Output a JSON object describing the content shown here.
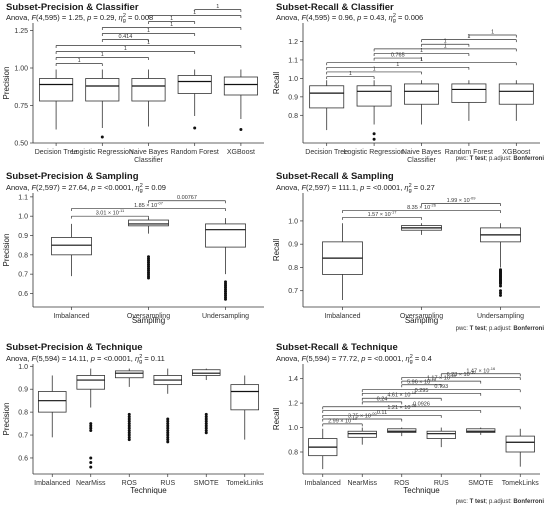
{
  "chart_data": [
    {
      "type": "box",
      "title": "Subset-Precision & Classifier",
      "stat": "Anova, F(4,595) = 1.25, p = 0.29, η²g = 0.008",
      "stat_parts": [
        "Anova, ",
        "F",
        "(4,595) = 1.25, ",
        "p",
        " = 0.29, ",
        "η",
        "g",
        "2",
        " = 0.008"
      ],
      "ylabel": "Precision",
      "xlabel": "",
      "ylim": [
        0.5,
        1.3
      ],
      "yticks": [
        0.5,
        0.75,
        1.0,
        1.25
      ],
      "ytick_labels": [
        "0.50",
        "0.75",
        "1.00",
        "1.25"
      ],
      "categories": [
        "Decision Tree",
        "Logistic Regression",
        "Naive Bayes Classifier",
        "Random Forest",
        "XGBoost"
      ],
      "category_lines": [
        [
          "Decision Tree"
        ],
        [
          "Logistic Regression"
        ],
        [
          "Naive Bayes",
          "Classifier"
        ],
        [
          "Random Forest"
        ],
        [
          "XGBoost"
        ]
      ],
      "boxes": [
        {
          "q1": 0.78,
          "median": 0.89,
          "q3": 0.93,
          "whisker_low": 0.59,
          "whisker_high": 0.99,
          "outliers": []
        },
        {
          "q1": 0.78,
          "median": 0.88,
          "q3": 0.93,
          "whisker_low": 0.6,
          "whisker_high": 0.99,
          "outliers": [
            0.54
          ]
        },
        {
          "q1": 0.78,
          "median": 0.88,
          "q3": 0.93,
          "whisker_low": 0.61,
          "whisker_high": 0.99,
          "outliers": []
        },
        {
          "q1": 0.83,
          "median": 0.91,
          "q3": 0.95,
          "whisker_low": 0.68,
          "whisker_high": 0.99,
          "outliers": [
            0.6
          ]
        },
        {
          "q1": 0.82,
          "median": 0.89,
          "q3": 0.94,
          "whisker_low": 0.66,
          "whisker_high": 0.99,
          "outliers": [
            0.59
          ]
        }
      ],
      "brackets": [
        {
          "from": 0,
          "to": 1,
          "y": 1.03,
          "label": "1"
        },
        {
          "from": 0,
          "to": 2,
          "y": 1.07,
          "label": "1"
        },
        {
          "from": 0,
          "to": 3,
          "y": 1.11,
          "label": "1"
        },
        {
          "from": 0,
          "to": 4,
          "y": 1.15,
          "label": "1"
        },
        {
          "from": 1,
          "to": 2,
          "y": 1.19,
          "label": "0.414"
        },
        {
          "from": 1,
          "to": 3,
          "y": 1.23,
          "label": "1"
        },
        {
          "from": 1,
          "to": 4,
          "y": 1.27,
          "label": "1"
        },
        {
          "from": 2,
          "to": 3,
          "y": 1.31,
          "label": "1"
        },
        {
          "from": 2,
          "to": 4,
          "y": 1.35,
          "label": "1"
        },
        {
          "from": 3,
          "to": 4,
          "y": 1.39,
          "label": "1"
        }
      ],
      "grid": false,
      "footer_parts": []
    },
    {
      "type": "box",
      "title": "Subset-Recall & Classifier",
      "stat": "Anova, F(4,595) = 0.96, p = 0.43, η²g = 0.006",
      "stat_parts": [
        "Anova, ",
        "F",
        "(4,595) = 0.96, ",
        "p",
        " = 0.43, ",
        "η",
        "g",
        "2",
        " = 0.006"
      ],
      "ylabel": "Recall",
      "xlabel": "",
      "ylim": [
        0.65,
        1.3
      ],
      "yticks": [
        0.8,
        0.9,
        1.0,
        1.1,
        1.2
      ],
      "ytick_labels": [
        "0.8",
        "0.9",
        "1.0",
        "1.1",
        "1.2"
      ],
      "categories": [
        "Decision Tree",
        "Logistic Regression",
        "Naive Bayes Classifier",
        "Random Forest",
        "XGBoost"
      ],
      "category_lines": [
        [
          "Decision Tree"
        ],
        [
          "Logistic Regression"
        ],
        [
          "Naive Bayes",
          "Classifier"
        ],
        [
          "Random Forest"
        ],
        [
          "XGBoost"
        ]
      ],
      "boxes": [
        {
          "q1": 0.84,
          "median": 0.92,
          "q3": 0.96,
          "whisker_low": 0.72,
          "whisker_high": 0.99,
          "outliers": []
        },
        {
          "q1": 0.85,
          "median": 0.93,
          "q3": 0.96,
          "whisker_low": 0.75,
          "whisker_high": 0.99,
          "outliers": [
            0.7,
            0.67
          ]
        },
        {
          "q1": 0.86,
          "median": 0.93,
          "q3": 0.97,
          "whisker_low": 0.75,
          "whisker_high": 0.99,
          "outliers": []
        },
        {
          "q1": 0.87,
          "median": 0.94,
          "q3": 0.97,
          "whisker_low": 0.77,
          "whisker_high": 0.99,
          "outliers": []
        },
        {
          "q1": 0.86,
          "median": 0.93,
          "q3": 0.97,
          "whisker_low": 0.77,
          "whisker_high": 0.99,
          "outliers": []
        }
      ],
      "brackets": [
        {
          "from": 0,
          "to": 1,
          "y": 1.01,
          "label": "1"
        },
        {
          "from": 0,
          "to": 2,
          "y": 1.035,
          "label": "1"
        },
        {
          "from": 0,
          "to": 3,
          "y": 1.06,
          "label": "1"
        },
        {
          "from": 0,
          "to": 4,
          "y": 1.085,
          "label": "1"
        },
        {
          "from": 1,
          "to": 2,
          "y": 1.11,
          "label": "0.765"
        },
        {
          "from": 1,
          "to": 3,
          "y": 1.135,
          "label": "1"
        },
        {
          "from": 1,
          "to": 4,
          "y": 1.16,
          "label": "1"
        },
        {
          "from": 2,
          "to": 3,
          "y": 1.185,
          "label": "1"
        },
        {
          "from": 2,
          "to": 4,
          "y": 1.21,
          "label": "1"
        },
        {
          "from": 3,
          "to": 4,
          "y": 1.235,
          "label": "1"
        }
      ],
      "grid": false,
      "footer_parts": [
        {
          "t": "pwc: ",
          "b": false
        },
        {
          "t": "T test",
          "b": true
        },
        {
          "t": "; p.adjust: ",
          "b": false
        },
        {
          "t": "Bonferroni",
          "b": true
        }
      ]
    },
    {
      "type": "box",
      "title": "Subset-Precision & Sampling",
      "stat": "Anova, F(2,597) = 27.64, p = <0.0001, η²g = 0.09",
      "stat_parts": [
        "Anova, ",
        "F",
        "(2,597) = 27.64, ",
        "p",
        " = <0.0001, ",
        "η",
        "g",
        "2",
        " = 0.09"
      ],
      "ylabel": "Precision",
      "xlabel": "Sampling",
      "ylim": [
        0.53,
        1.12
      ],
      "yticks": [
        0.6,
        0.7,
        0.8,
        0.9,
        1.0,
        1.1
      ],
      "ytick_labels": [
        "0.6",
        "0.7",
        "0.8",
        "0.9",
        "1.0",
        "1.1"
      ],
      "categories": [
        "Imbalanced",
        "Oversampling",
        "Undersampling"
      ],
      "category_lines": [
        [
          "Imbalanced"
        ],
        [
          "Oversampling"
        ],
        [
          "Undersampling"
        ]
      ],
      "boxes": [
        {
          "q1": 0.8,
          "median": 0.85,
          "q3": 0.89,
          "whisker_low": 0.69,
          "whisker_high": 0.96,
          "outliers": []
        },
        {
          "q1": 0.95,
          "median": 0.96,
          "q3": 0.98,
          "whisker_low": 0.91,
          "whisker_high": 0.99,
          "outliers": [
            0.79,
            0.78,
            0.77,
            0.76,
            0.75,
            0.74,
            0.73,
            0.72,
            0.71,
            0.7,
            0.69,
            0.68
          ]
        },
        {
          "q1": 0.84,
          "median": 0.93,
          "q3": 0.96,
          "whisker_low": 0.7,
          "whisker_high": 0.99,
          "outliers": [
            0.66,
            0.65,
            0.64,
            0.63,
            0.62,
            0.61,
            0.6,
            0.59,
            0.58,
            0.57
          ]
        }
      ],
      "brackets": [
        {
          "from": 0,
          "to": 1,
          "y": 1.0,
          "label": "3.01 × 10⁻¹¹",
          "base": "3.01 × 10",
          "exp": "-11"
        },
        {
          "from": 0,
          "to": 2,
          "y": 1.04,
          "label": "1.85 × 10⁻⁰⁷",
          "base": "1.85 × 10",
          "exp": "-07"
        },
        {
          "from": 1,
          "to": 2,
          "y": 1.08,
          "label": "0.00767"
        }
      ],
      "grid": false,
      "footer_parts": []
    },
    {
      "type": "box",
      "title": "Subset-Recall & Sampling",
      "stat": "Anova, F(2,597) = 111.1, p = <0.0001, η²g = 0.27",
      "stat_parts": [
        "Anova, ",
        "F",
        "(2,597) = 111.1, ",
        "p",
        " = <0.0001, ",
        "η",
        "g",
        "2",
        " = 0.27"
      ],
      "ylabel": "Recall",
      "xlabel": "Sampling",
      "ylim": [
        0.63,
        1.12
      ],
      "yticks": [
        0.7,
        0.8,
        0.9,
        1.0
      ],
      "ytick_labels": [
        "0.7",
        "0.8",
        "0.9",
        "1.0"
      ],
      "categories": [
        "Imbalanced",
        "Oversampling",
        "Undersampling"
      ],
      "category_lines": [
        [
          "Imbalanced"
        ],
        [
          "Oversampling"
        ],
        [
          "Undersampling"
        ]
      ],
      "boxes": [
        {
          "q1": 0.77,
          "median": 0.84,
          "q3": 0.91,
          "whisker_low": 0.66,
          "whisker_high": 0.99,
          "outliers": []
        },
        {
          "q1": 0.96,
          "median": 0.97,
          "q3": 0.98,
          "whisker_low": 0.94,
          "whisker_high": 0.99,
          "outliers": []
        },
        {
          "q1": 0.91,
          "median": 0.94,
          "q3": 0.97,
          "whisker_low": 0.8,
          "whisker_high": 0.99,
          "outliers": [
            0.79,
            0.785,
            0.78,
            0.775,
            0.77,
            0.765,
            0.76,
            0.755,
            0.75,
            0.745,
            0.74,
            0.735,
            0.73,
            0.72,
            0.7,
            0.69,
            0.68
          ]
        }
      ],
      "brackets": [
        {
          "from": 0,
          "to": 1,
          "y": 1.015,
          "label": "1.57 × 10⁻¹⁷",
          "base": "1.57 × 10",
          "exp": "-17"
        },
        {
          "from": 0,
          "to": 2,
          "y": 1.045,
          "label": "8.35 × 10⁻²⁶",
          "base": "8.35 × 10",
          "exp": "-26"
        },
        {
          "from": 1,
          "to": 2,
          "y": 1.075,
          "label": "1.99 × 10⁻⁰⁹",
          "base": "1.99 × 10",
          "exp": "-09"
        }
      ],
      "grid": false,
      "footer_parts": [
        {
          "t": "pwc: ",
          "b": false
        },
        {
          "t": "T test",
          "b": true
        },
        {
          "t": "; p.adjust: ",
          "b": false
        },
        {
          "t": "Bonferroni",
          "b": true
        }
      ]
    },
    {
      "type": "box",
      "title": "Subset-Precision & Technique",
      "stat": "Anova, F(5,594) = 14.11, p = <0.0001, η²g = 0.11",
      "stat_parts": [
        "Anova, ",
        "F",
        "(5,594) = 14.11, ",
        "p",
        " = <0.0001, ",
        "η",
        "g",
        "2",
        " = 0.11"
      ],
      "ylabel": "Precision",
      "xlabel": "Technique",
      "ylim": [
        0.53,
        1.01
      ],
      "yticks": [
        0.6,
        0.7,
        0.8,
        0.9,
        1.0
      ],
      "ytick_labels": [
        "0.6",
        "0.7",
        "0.8",
        "0.9",
        "1.0"
      ],
      "categories": [
        "Imbalanced",
        "NearMiss",
        "ROS",
        "RUS",
        "SMOTE",
        "TomekLinks"
      ],
      "category_lines": [
        [
          "Imbalanced"
        ],
        [
          "NearMiss"
        ],
        [
          "ROS"
        ],
        [
          "RUS"
        ],
        [
          "SMOTE"
        ],
        [
          "TomekLinks"
        ]
      ],
      "boxes": [
        {
          "q1": 0.8,
          "median": 0.85,
          "q3": 0.89,
          "whisker_low": 0.69,
          "whisker_high": 0.96,
          "outliers": []
        },
        {
          "q1": 0.9,
          "median": 0.94,
          "q3": 0.96,
          "whisker_low": 0.82,
          "whisker_high": 0.99,
          "outliers": [
            0.75,
            0.74,
            0.73,
            0.72,
            0.6,
            0.58,
            0.56
          ]
        },
        {
          "q1": 0.95,
          "median": 0.97,
          "q3": 0.98,
          "whisker_low": 0.91,
          "whisker_high": 0.99,
          "outliers": [
            0.79,
            0.78,
            0.77,
            0.76,
            0.75,
            0.74,
            0.73,
            0.72,
            0.71,
            0.7,
            0.69,
            0.68
          ]
        },
        {
          "q1": 0.92,
          "median": 0.94,
          "q3": 0.96,
          "whisker_low": 0.88,
          "whisker_high": 0.99,
          "outliers": [
            0.77,
            0.76,
            0.75,
            0.74,
            0.73,
            0.72,
            0.71,
            0.7,
            0.69,
            0.68,
            0.67
          ]
        },
        {
          "q1": 0.96,
          "median": 0.97,
          "q3": 0.985,
          "whisker_low": 0.94,
          "whisker_high": 0.99,
          "outliers": [
            0.79,
            0.78,
            0.77,
            0.76,
            0.75,
            0.74,
            0.73,
            0.72,
            0.71
          ]
        },
        {
          "q1": 0.81,
          "median": 0.89,
          "q3": 0.92,
          "whisker_low": 0.68,
          "whisker_high": 0.96,
          "outliers": []
        }
      ],
      "brackets": [],
      "grid": false,
      "footer_parts": []
    },
    {
      "type": "box",
      "title": "Subset-Recall & Technique",
      "stat": "Anova, F(5,594) = 77.72, p = <0.0001, η²g = 0.4",
      "stat_parts": [
        "Anova, ",
        "F",
        "(5,594) = 77.72, ",
        "p",
        " = <0.0001, ",
        "η",
        "g",
        "2",
        " = 0.4"
      ],
      "ylabel": "Recall",
      "xlabel": "Technique",
      "ylim": [
        0.62,
        1.52
      ],
      "yticks": [
        0.8,
        1.0,
        1.2,
        1.4
      ],
      "ytick_labels": [
        "0.8",
        "1.0",
        "1.2",
        "1.4"
      ],
      "categories": [
        "Imbalanced",
        "NearMiss",
        "ROS",
        "RUS",
        "SMOTE",
        "TomekLinks"
      ],
      "category_lines": [
        [
          "Imbalanced"
        ],
        [
          "NearMiss"
        ],
        [
          "ROS"
        ],
        [
          "RUS"
        ],
        [
          "SMOTE"
        ],
        [
          "TomekLinks"
        ]
      ],
      "boxes": [
        {
          "q1": 0.77,
          "median": 0.84,
          "q3": 0.91,
          "whisker_low": 0.66,
          "whisker_high": 0.99,
          "outliers": []
        },
        {
          "q1": 0.92,
          "median": 0.95,
          "q3": 0.97,
          "whisker_low": 0.86,
          "whisker_high": 1.0,
          "outliers": []
        },
        {
          "q1": 0.96,
          "median": 0.97,
          "q3": 0.99,
          "whisker_low": 0.93,
          "whisker_high": 1.0,
          "outliers": []
        },
        {
          "q1": 0.91,
          "median": 0.95,
          "q3": 0.97,
          "whisker_low": 0.84,
          "whisker_high": 1.0,
          "outliers": []
        },
        {
          "q1": 0.96,
          "median": 0.97,
          "q3": 0.99,
          "whisker_low": 0.94,
          "whisker_high": 1.0,
          "outliers": []
        },
        {
          "q1": 0.8,
          "median": 0.88,
          "q3": 0.93,
          "whisker_low": 0.68,
          "whisker_high": 0.99,
          "outliers": []
        }
      ],
      "brackets": [
        {
          "from": 0,
          "to": 1,
          "y": 1.03,
          "label": "2.99 × 10⁻¹⁰",
          "base": "2.99 × 10",
          "exp": "-10"
        },
        {
          "from": 0,
          "to": 2,
          "y": 1.07,
          "label": "3.75 × 10⁻⁰⁰",
          "base": "3.75 × 10",
          "exp": "-00"
        },
        {
          "from": 0,
          "to": 3,
          "y": 1.1,
          "label": "0.11"
        },
        {
          "from": 0,
          "to": 4,
          "y": 1.14,
          "label": "1.21 × 10⁻⁰⁶",
          "base": "1.21 × 10",
          "exp": "-06"
        },
        {
          "from": 0,
          "to": 5,
          "y": 1.17,
          "label": "0.0926"
        },
        {
          "from": 1,
          "to": 2,
          "y": 1.21,
          "label": "0.24"
        },
        {
          "from": 1,
          "to": 3,
          "y": 1.24,
          "label": "4.61 × 10⁻¹⁸",
          "base": "4.61 × 10",
          "exp": "-18"
        },
        {
          "from": 1,
          "to": 4,
          "y": 1.28,
          "label": "0.295"
        },
        {
          "from": 1,
          "to": 5,
          "y": 1.31,
          "label": "0.793"
        },
        {
          "from": 2,
          "to": 3,
          "y": 1.35,
          "label": "5.96 × 10⁻¹⁸",
          "base": "5.96 × 10",
          "exp": "-18"
        },
        {
          "from": 2,
          "to": 4,
          "y": 1.38,
          "label": "1.17 × 10⁻¹⁸",
          "base": "1.17 × 10",
          "exp": "-18"
        },
        {
          "from": 2,
          "to": 5,
          "y": 1.41,
          "label": "6.23 × 10⁻¹⁰",
          "base": "6.23 × 10",
          "exp": "-10"
        },
        {
          "from": 3,
          "to": 5,
          "y": 1.44,
          "label": "1.47 × 10⁻¹⁶",
          "base": "1.47 × 10",
          "exp": "-16"
        }
      ],
      "grid": false,
      "footer_parts": [
        {
          "t": "pwc: ",
          "b": false
        },
        {
          "t": "T test",
          "b": true
        },
        {
          "t": "; p.adjust: ",
          "b": false
        },
        {
          "t": "Bonferroni",
          "b": true
        }
      ]
    }
  ]
}
